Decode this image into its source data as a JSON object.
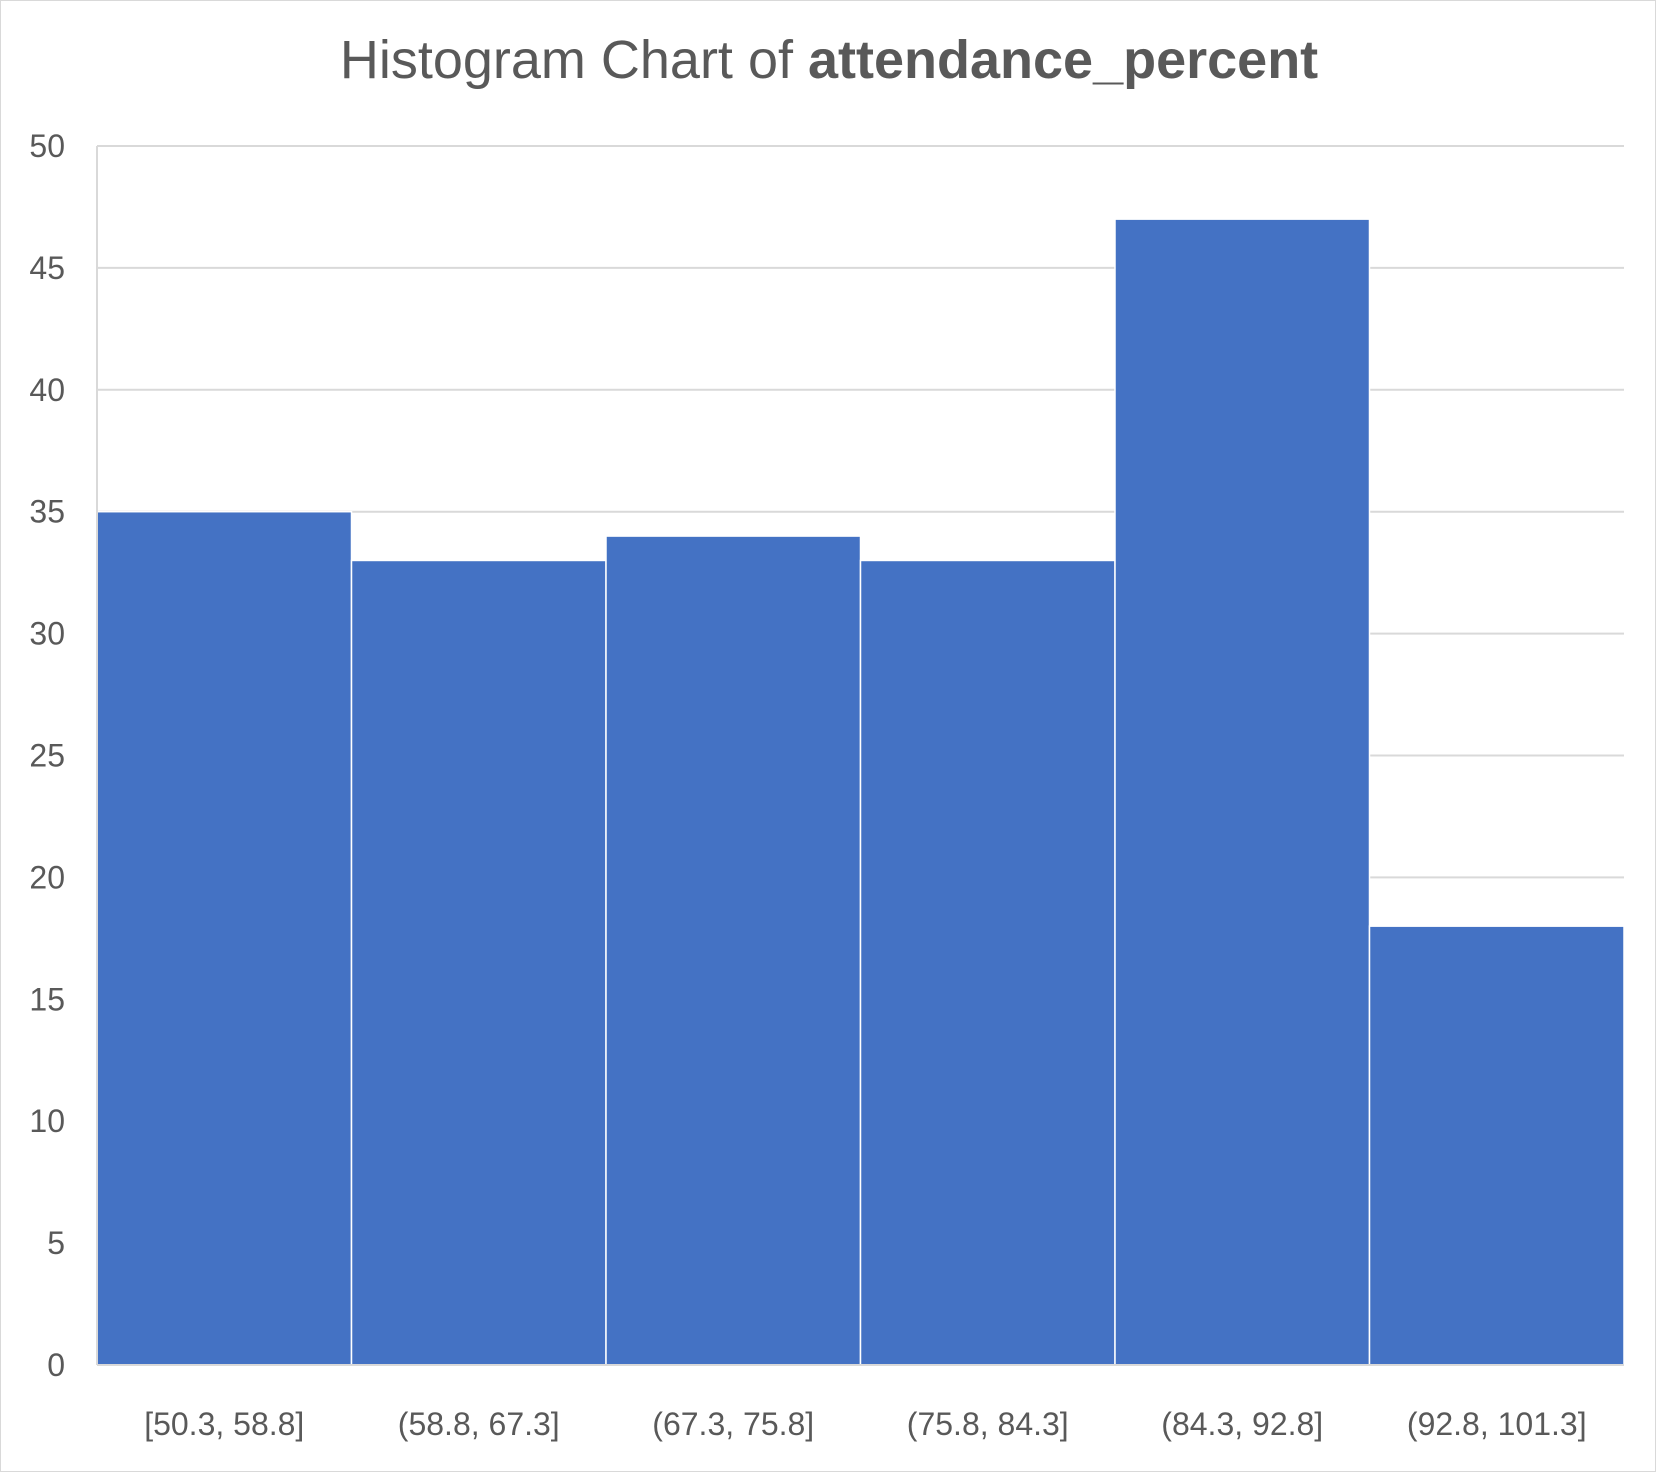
{
  "chart_data": {
    "type": "bar",
    "title_prefix": "Histogram Chart of ",
    "title_variable": "attendance_percent",
    "categories": [
      "[50.3, 58.8]",
      "(58.8, 67.3]",
      "(67.3, 75.8]",
      "(75.8, 84.3]",
      "(84.3, 92.8]",
      "(92.8, 101.3]"
    ],
    "values": [
      35,
      33,
      34,
      33,
      47,
      18
    ],
    "ylim": [
      0,
      50
    ],
    "yticks": [
      "0",
      "5",
      "10",
      "15",
      "20",
      "25",
      "30",
      "35",
      "40",
      "45",
      "50"
    ],
    "grid": true,
    "legend": "none",
    "xlabel": "",
    "ylabel": "",
    "colors": {
      "bar": "#4472c4",
      "grid": "#d9d9d9",
      "text": "#595959"
    }
  }
}
